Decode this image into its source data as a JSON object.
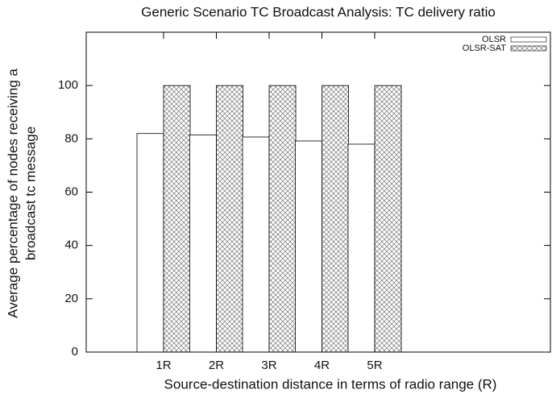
{
  "chart_data": {
    "type": "bar",
    "title": "Generic Scenario TC Broadcast Analysis: TC delivery ratio",
    "xlabel": "Source-destination distance in terms of radio range (R)",
    "ylabel": [
      "Average percentage of nodes receiving a",
      "broadcast tc message"
    ],
    "categories": [
      "1R",
      "2R",
      "3R",
      "4R",
      "5R"
    ],
    "series": [
      {
        "name": "OLSR",
        "color": "#ffffff",
        "values": [
          82,
          81.5,
          80.7,
          79.2,
          78
        ]
      },
      {
        "name": "OLSR-SAT",
        "color": "hatch",
        "values": [
          100,
          100,
          100,
          100,
          100
        ]
      }
    ],
    "ylim": [
      0,
      120
    ],
    "yticks": [
      0,
      20,
      40,
      60,
      80,
      100
    ],
    "legend": "top-right"
  }
}
